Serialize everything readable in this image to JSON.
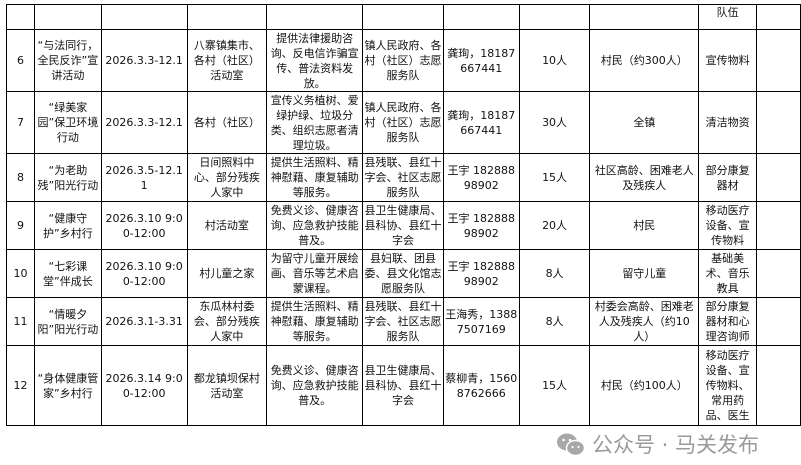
{
  "header_row": {
    "last_label": "队伍"
  },
  "rows": [
    {
      "no": "6",
      "name": "“与法同行，全民反诈”宣讲活动",
      "time": "2026.3.3-12.1",
      "place": "八寨镇集市、各村（社区）活动室",
      "content": "提供法律援助咨询、反电信诈骗宣传、普法资料发放。",
      "org": "镇人民政府、各村（社区）志愿服务队",
      "contact": "龚珣，18187667441",
      "people": "10人",
      "target": "村民（约300人）",
      "material": "宣传物料"
    },
    {
      "no": "7",
      "name": "“绿美家园”保卫环境行动",
      "time": "2026.3.3-12.1",
      "place": "各村（社区）",
      "content": "宣传义务植树、爱绿护绿、垃圾分类、组织志愿者清理垃圾。",
      "org": "镇人民政府、各村（社区）志愿服务队",
      "contact": "龚珣，18187667441",
      "people": "30人",
      "target": "全镇",
      "material": "清洁物资"
    },
    {
      "no": "8",
      "name": "“为老助残”阳光行动",
      "time": "2026.3.5-12.11",
      "place": "日间照料中心、部分残疾人家中",
      "content": "提供生活照料、精神慰藉、康复辅助等服务。",
      "org": "县残联、县红十字会、社区志愿服务队",
      "contact": "王宇 18288898902",
      "people": "15人",
      "target": "社区高龄、困难老人及残疾人",
      "material": "部分康复器材"
    },
    {
      "no": "9",
      "name": "“健康守护”乡村行",
      "time": "2026.3.10 9:00-12:00",
      "place": "村活动室",
      "content": "免费义诊、健康咨询、应急救护技能普及。",
      "org": "县卫生健康局、县科协、县红十字会",
      "contact": "王宇 18288898902",
      "people": "20人",
      "target": "村民",
      "material": "移动医疗设备、宣传物料"
    },
    {
      "no": "10",
      "name": "“七彩课堂”伴成长",
      "time": "2026.3.10 9:00-12:00",
      "place": "村儿童之家",
      "content": "为留守儿童开展绘画、音乐等艺术启蒙课程。",
      "org": "县妇联、团县委、县文化馆志愿服务队",
      "contact": "王宇 18288898902",
      "people": "8人",
      "target": "留守儿童",
      "material": "基础美术、音乐教具"
    },
    {
      "no": "11",
      "name": "“情暖夕阳”阳光行动",
      "time": "2026.3.1-3.31",
      "place": "东瓜林村委会、部分残疾人家中",
      "content": "提供生活照料、精神慰藉、康复辅助等服务。",
      "org": "县残联、县红十字会、社区志愿服务队",
      "contact": "王海秀，13887507169",
      "people": "8人",
      "target": "村委会高龄、困难老人及残疾人（约10人）",
      "material": "部分康复器材和心理咨询师"
    },
    {
      "no": "12",
      "name": "“身体健康管家”乡村行",
      "time": "2026.3.14 9:00-12:00",
      "place": "都龙镇坝保村活动室",
      "content": "免费义诊、健康咨询、应急救护技能普及。",
      "org": "县卫生健康局、县科协、县红十字会",
      "contact": "蔡柳青，15608762666",
      "people": "15人",
      "target": "村民（约100人）",
      "material": "移动医疗设备、宣传物料、常用药品、医生"
    }
  ],
  "watermark": {
    "text": "公众号 · 马关发布",
    "icon": "wechat-icon"
  }
}
